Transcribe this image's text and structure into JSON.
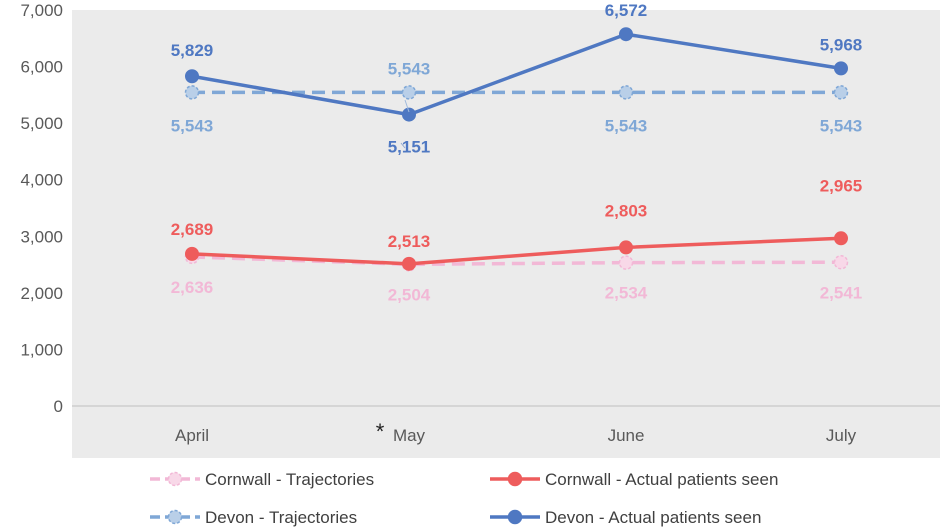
{
  "chart_data": {
    "type": "line",
    "categories": [
      "April",
      "May",
      "June",
      "July"
    ],
    "category_annotations": {
      "May": "*"
    },
    "ylim": [
      0,
      7000
    ],
    "yticks": [
      "0",
      "1,000",
      "2,000",
      "3,000",
      "4,000",
      "5,000",
      "6,000",
      "7,000"
    ],
    "ytick_values": [
      0,
      1000,
      2000,
      3000,
      4000,
      5000,
      6000,
      7000
    ],
    "legend_position": "bottom",
    "plot_background": "#ebebeb",
    "series": [
      {
        "name": "Cornwall - Trajectories",
        "values": [
          2636,
          2504,
          2534,
          2541
        ],
        "labels": [
          "2,636",
          "2,504",
          "2,534",
          "2,541"
        ],
        "color": "#f2b8d6",
        "style": "dashed"
      },
      {
        "name": "Cornwall - Actual patients seen",
        "values": [
          2689,
          2513,
          2803,
          2965
        ],
        "labels": [
          "2,689",
          "2,513",
          "2,803",
          "2,965"
        ],
        "color": "#ee5c5c",
        "style": "solid"
      },
      {
        "name": "Devon - Trajectories",
        "values": [
          5543,
          5543,
          5543,
          5543
        ],
        "labels": [
          "5,543",
          "5,543",
          "5,543",
          "5,543"
        ],
        "color": "#7fa7d6",
        "style": "dashed"
      },
      {
        "name": "Devon - Actual patients seen",
        "values": [
          5829,
          5151,
          6572,
          5968
        ],
        "labels": [
          "5,829",
          "5,151",
          "6,572",
          "5,968"
        ],
        "color": "#4f78c2",
        "style": "solid"
      }
    ]
  }
}
